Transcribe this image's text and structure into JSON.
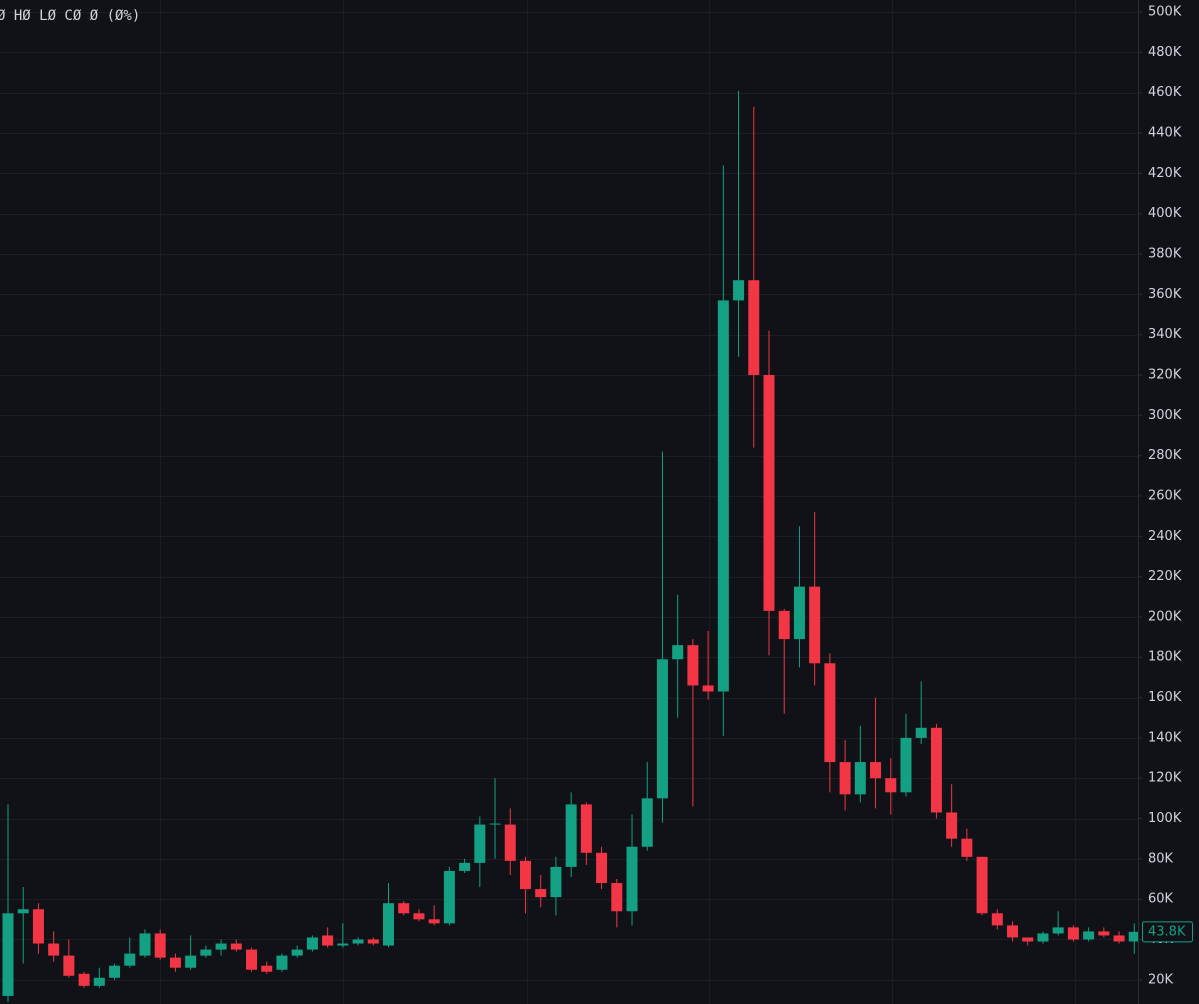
{
  "chart_data": {
    "type": "candlestick",
    "header": "Ø HØ LØ CØ Ø (Ø%)",
    "up_color": "#14a083",
    "down_color": "#f23645",
    "open": [
      12,
      53,
      55,
      38,
      32,
      23,
      17,
      21,
      27,
      32,
      43,
      31,
      26,
      32,
      35,
      38,
      35,
      27,
      25,
      32,
      35,
      42,
      37,
      38,
      40,
      37,
      58,
      53,
      50,
      48,
      74,
      78,
      97,
      97,
      79,
      65,
      61,
      76,
      107,
      83,
      68,
      54,
      86,
      110,
      179,
      186,
      166,
      163,
      357,
      367,
      320,
      203,
      189,
      215,
      177,
      128,
      112,
      128,
      120,
      113,
      140,
      145,
      103,
      90,
      81,
      53,
      47,
      41,
      39,
      43,
      46,
      40,
      44,
      42,
      39
    ],
    "high": [
      107,
      66,
      58,
      44,
      40,
      24,
      26,
      28,
      41,
      45,
      45,
      33,
      42,
      37,
      40,
      40,
      36,
      29,
      33,
      37,
      42,
      46,
      48,
      41,
      41,
      68,
      59,
      55,
      57,
      76,
      80,
      101,
      120,
      105,
      81,
      72,
      81,
      113,
      108,
      86,
      70,
      102,
      128,
      282,
      211,
      189,
      193,
      424,
      461,
      453,
      342,
      204,
      245,
      252,
      182,
      139,
      146,
      160,
      130,
      152,
      168,
      147,
      117,
      95,
      81,
      55,
      49,
      41,
      44,
      54,
      47,
      46,
      46,
      44,
      48
    ],
    "low": [
      9,
      28,
      33,
      29,
      21,
      16,
      16,
      20,
      26,
      31,
      30,
      24,
      25,
      31,
      32,
      34,
      24,
      23,
      24,
      31,
      34,
      36,
      36,
      37,
      37,
      36,
      52,
      49,
      47,
      47,
      73,
      66,
      80,
      72,
      53,
      56,
      52,
      71,
      77,
      65,
      46,
      47,
      84,
      98,
      150,
      106,
      159,
      141,
      329,
      284,
      181,
      152,
      175,
      166,
      113,
      104,
      108,
      105,
      102,
      111,
      137,
      100,
      86,
      79,
      52,
      45,
      39,
      37,
      38,
      42,
      39,
      39,
      41,
      38,
      33
    ],
    "close": [
      53,
      55,
      38,
      32,
      22,
      17,
      21,
      27,
      33,
      43,
      31,
      26,
      32,
      35,
      38,
      35,
      25,
      24,
      32,
      35,
      41,
      37,
      38,
      40,
      38,
      58,
      53,
      50,
      48,
      74,
      78,
      97,
      97.5,
      79,
      65,
      61,
      76,
      107,
      83,
      68,
      54,
      86,
      110,
      179,
      186,
      166,
      163,
      357,
      367,
      320,
      203,
      189,
      215,
      177,
      128,
      112,
      128,
      120,
      113,
      140,
      145,
      103,
      90,
      81,
      53,
      47,
      41,
      39,
      43,
      46,
      40,
      44,
      42,
      39,
      43.8
    ],
    "ylim": [
      8,
      506
    ],
    "yticks": [
      {
        "value": 20,
        "label": "20K"
      },
      {
        "value": 40,
        "label": "40K"
      },
      {
        "value": 60,
        "label": "60K"
      },
      {
        "value": 80,
        "label": "80K"
      },
      {
        "value": 100,
        "label": "100K"
      },
      {
        "value": 120,
        "label": "120K"
      },
      {
        "value": 140,
        "label": "140K"
      },
      {
        "value": 160,
        "label": "160K"
      },
      {
        "value": 180,
        "label": "180K"
      },
      {
        "value": 200,
        "label": "200K"
      },
      {
        "value": 220,
        "label": "220K"
      },
      {
        "value": 240,
        "label": "240K"
      },
      {
        "value": 260,
        "label": "260K"
      },
      {
        "value": 280,
        "label": "280K"
      },
      {
        "value": 300,
        "label": "300K"
      },
      {
        "value": 320,
        "label": "320K"
      },
      {
        "value": 340,
        "label": "340K"
      },
      {
        "value": 360,
        "label": "360K"
      },
      {
        "value": 380,
        "label": "380K"
      },
      {
        "value": 400,
        "label": "400K"
      },
      {
        "value": 420,
        "label": "420K"
      },
      {
        "value": 440,
        "label": "440K"
      },
      {
        "value": 460,
        "label": "460K"
      },
      {
        "value": 480,
        "label": "480K"
      },
      {
        "value": 500,
        "label": "500K"
      }
    ],
    "last_price": {
      "value": 43.8,
      "label": "43.8K"
    },
    "grid": true
  }
}
